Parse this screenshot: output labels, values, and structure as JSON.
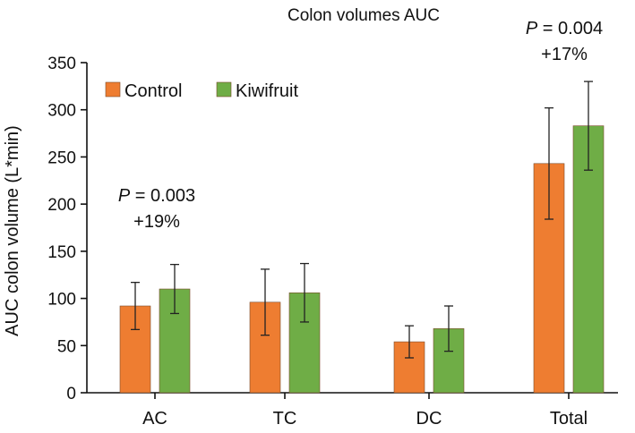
{
  "chart_data": {
    "type": "bar",
    "title": "Colon volumes AUC",
    "xlabel": "",
    "ylabel": "AUC colon volume (L*min)",
    "ylim": [
      0,
      350
    ],
    "yticks": [
      0,
      50,
      100,
      150,
      200,
      250,
      300,
      350
    ],
    "categories": [
      "AC",
      "TC",
      "DC",
      "Total"
    ],
    "series": [
      {
        "name": "Control",
        "color": "#ee7d31",
        "values": [
          92,
          96,
          54,
          243
        ],
        "errors": [
          25,
          35,
          17,
          59
        ]
      },
      {
        "name": "Kiwifruit",
        "color": "#6fad46",
        "values": [
          110,
          106,
          68,
          283
        ],
        "errors": [
          26,
          31,
          24,
          47
        ]
      }
    ],
    "legend_position": "top-left",
    "annotations": [
      {
        "category": "AC",
        "p_prefix": "P",
        "p_text": " = 0.003",
        "change": "+19%"
      },
      {
        "category": "Total",
        "p_prefix": "P",
        "p_text": " = 0.004",
        "change": "+17%"
      }
    ]
  }
}
